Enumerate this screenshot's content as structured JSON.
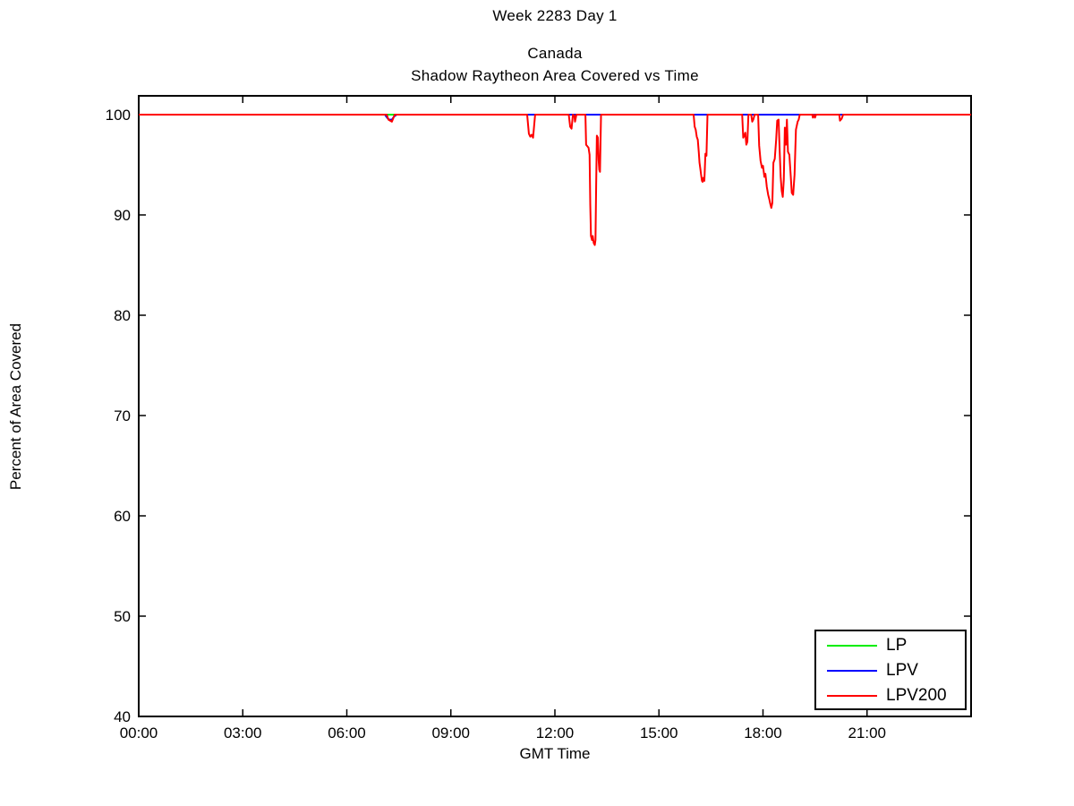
{
  "window_title": "Week 2283 Day 1",
  "chart_data": {
    "type": "line",
    "suptitle": "Week 2283 Day 1",
    "title_line1": "Canada",
    "title_line2": "Shadow Raytheon Area Covered vs Time",
    "xlabel": "GMT Time",
    "ylabel": "Percent of Area Covered",
    "xlim_hours": [
      0,
      24
    ],
    "ylim": [
      40,
      101.875
    ],
    "grid": false,
    "axis_color": "#000000",
    "xticks": [
      {
        "hour": 0,
        "label": "00:00"
      },
      {
        "hour": 3,
        "label": "03:00"
      },
      {
        "hour": 6,
        "label": "06:00"
      },
      {
        "hour": 9,
        "label": "09:00"
      },
      {
        "hour": 12,
        "label": "12:00"
      },
      {
        "hour": 15,
        "label": "15:00"
      },
      {
        "hour": 18,
        "label": "18:00"
      },
      {
        "hour": 21,
        "label": "21:00"
      }
    ],
    "yticks": [
      40,
      50,
      60,
      70,
      80,
      90,
      100
    ],
    "legend": {
      "position": "lower-right",
      "entries": [
        {
          "label": "LP",
          "color": "#00ee00"
        },
        {
          "label": "LPV",
          "color": "#0000ff"
        },
        {
          "label": "LPV200",
          "color": "#ff0000"
        }
      ]
    },
    "series": [
      {
        "name": "LP",
        "color": "#00ee00",
        "points": [
          [
            0,
            100
          ],
          [
            24,
            100
          ]
        ]
      },
      {
        "name": "LPV",
        "color": "#0000ff",
        "points": [
          [
            0,
            100
          ],
          [
            7.1,
            100
          ],
          [
            7.16,
            99.7
          ],
          [
            7.22,
            99.5
          ],
          [
            7.3,
            99.5
          ],
          [
            7.36,
            99.8
          ],
          [
            7.44,
            100
          ],
          [
            24,
            100
          ]
        ]
      },
      {
        "name": "LPV200",
        "color": "#ff0000",
        "points": [
          [
            0,
            100
          ],
          [
            7.15,
            100
          ],
          [
            7.2,
            99.5
          ],
          [
            7.25,
            99.4
          ],
          [
            7.3,
            99.3
          ],
          [
            7.38,
            100
          ],
          [
            11.2,
            100
          ],
          [
            11.25,
            98.1
          ],
          [
            11.29,
            97.8
          ],
          [
            11.33,
            98.0
          ],
          [
            11.37,
            97.7
          ],
          [
            11.43,
            100
          ],
          [
            12.4,
            100
          ],
          [
            12.44,
            98.8
          ],
          [
            12.48,
            98.6
          ],
          [
            12.52,
            100
          ],
          [
            12.56,
            99.9
          ],
          [
            12.58,
            99.3
          ],
          [
            12.62,
            100
          ],
          [
            12.88,
            100
          ],
          [
            12.9,
            97.0
          ],
          [
            12.97,
            96.7
          ],
          [
            13.0,
            96.0
          ],
          [
            13.02,
            91.0
          ],
          [
            13.04,
            87.9
          ],
          [
            13.07,
            87.5
          ],
          [
            13.09,
            87.9
          ],
          [
            13.12,
            87.2
          ],
          [
            13.15,
            87.0
          ],
          [
            13.17,
            87.5
          ],
          [
            13.19,
            93.0
          ],
          [
            13.21,
            97.9
          ],
          [
            13.24,
            97.7
          ],
          [
            13.26,
            95.5
          ],
          [
            13.28,
            94.5
          ],
          [
            13.3,
            94.3
          ],
          [
            13.33,
            100
          ],
          [
            16.0,
            100
          ],
          [
            16.03,
            98.8
          ],
          [
            16.06,
            98.5
          ],
          [
            16.09,
            97.8
          ],
          [
            16.12,
            97.5
          ],
          [
            16.15,
            96.2
          ],
          [
            16.17,
            95.2
          ],
          [
            16.19,
            94.7
          ],
          [
            16.22,
            93.9
          ],
          [
            16.24,
            93.4
          ],
          [
            16.26,
            93.3
          ],
          [
            16.28,
            93.7
          ],
          [
            16.31,
            93.4
          ],
          [
            16.34,
            96.1
          ],
          [
            16.37,
            95.9
          ],
          [
            16.4,
            100
          ],
          [
            17.4,
            100
          ],
          [
            17.43,
            97.7
          ],
          [
            17.46,
            97.9
          ],
          [
            17.49,
            98.2
          ],
          [
            17.52,
            97.0
          ],
          [
            17.55,
            97.3
          ],
          [
            17.58,
            100
          ],
          [
            17.66,
            100
          ],
          [
            17.69,
            99.3
          ],
          [
            17.72,
            99.5
          ],
          [
            17.76,
            100
          ],
          [
            17.86,
            100
          ],
          [
            17.89,
            96.9
          ],
          [
            17.93,
            95.4
          ],
          [
            17.97,
            94.7
          ],
          [
            18.0,
            94.9
          ],
          [
            18.04,
            93.8
          ],
          [
            18.07,
            94.1
          ],
          [
            18.11,
            92.8
          ],
          [
            18.15,
            92.0
          ],
          [
            18.18,
            91.6
          ],
          [
            18.21,
            91.1
          ],
          [
            18.24,
            90.7
          ],
          [
            18.27,
            91.2
          ],
          [
            18.3,
            95.2
          ],
          [
            18.34,
            95.6
          ],
          [
            18.38,
            97.5
          ],
          [
            18.41,
            99.4
          ],
          [
            18.45,
            99.5
          ],
          [
            18.48,
            96.5
          ],
          [
            18.51,
            93.8
          ],
          [
            18.54,
            92.4
          ],
          [
            18.57,
            91.8
          ],
          [
            18.6,
            93.5
          ],
          [
            18.63,
            98.7
          ],
          [
            18.66,
            97.0
          ],
          [
            18.69,
            99.5
          ],
          [
            18.72,
            96.3
          ],
          [
            18.76,
            96.0
          ],
          [
            18.8,
            93.9
          ],
          [
            18.83,
            92.2
          ],
          [
            18.87,
            92.0
          ],
          [
            18.91,
            94.0
          ],
          [
            18.95,
            98.5
          ],
          [
            19.0,
            99.3
          ],
          [
            19.03,
            99.5
          ],
          [
            19.06,
            100
          ],
          [
            19.42,
            100
          ],
          [
            19.44,
            99.7
          ],
          [
            19.47,
            100
          ],
          [
            19.5,
            99.7
          ],
          [
            19.53,
            100
          ],
          [
            20.2,
            100
          ],
          [
            20.22,
            99.4
          ],
          [
            20.27,
            99.6
          ],
          [
            20.31,
            100
          ],
          [
            24,
            100
          ]
        ]
      }
    ]
  }
}
